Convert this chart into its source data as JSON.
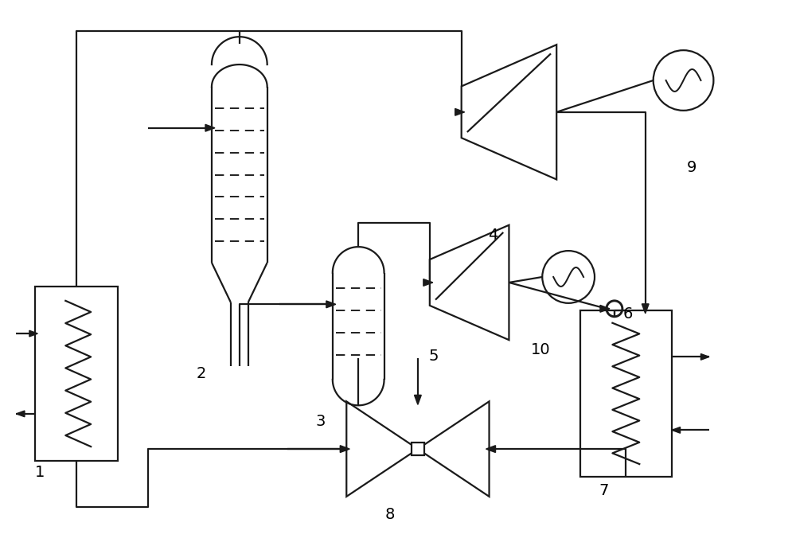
{
  "bg_color": "#ffffff",
  "line_color": "#1a1a1a",
  "lw": 1.6,
  "figsize": [
    10.0,
    6.86
  ],
  "dpi": 100,
  "label_fs": 14
}
